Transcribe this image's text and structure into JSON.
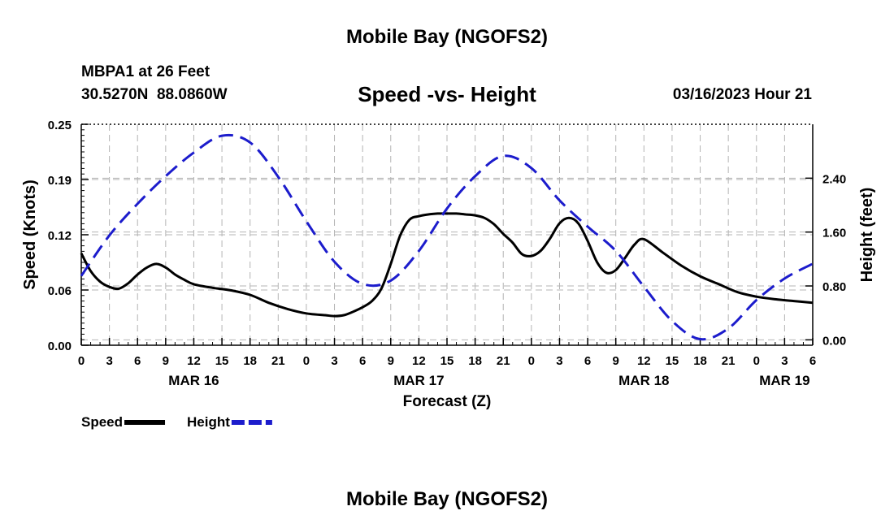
{
  "header": {
    "title": "Mobile Bay (NGOFS2)",
    "station": "MBPA1 at 26 Feet",
    "coords": "30.5270N  88.0860W",
    "subtitle": "Speed -vs- Height",
    "datetime": "03/16/2023 Hour 21"
  },
  "footer_title": "Mobile Bay (NGOFS2)",
  "colors": {
    "speed": "#000000",
    "height": "#1c1ccc",
    "grid": "#b4b4b4"
  },
  "chart_data": {
    "type": "line",
    "title": "Speed -vs- Height",
    "xlabel": "Forecast (Z)",
    "x_unit": "forecast hours from MAR 16 00Z",
    "xlim": [
      0,
      78
    ],
    "x_ticks": [
      0,
      3,
      6,
      9,
      12,
      15,
      18,
      21,
      24,
      27,
      30,
      33,
      36,
      39,
      42,
      45,
      48,
      51,
      54,
      57,
      60,
      63,
      66,
      69,
      72,
      75,
      78
    ],
    "x_tick_labels": [
      "0",
      "3",
      "6",
      "9",
      "12",
      "15",
      "18",
      "21",
      "0",
      "3",
      "6",
      "9",
      "12",
      "15",
      "18",
      "21",
      "0",
      "3",
      "6",
      "9",
      "12",
      "15",
      "18",
      "21",
      "0",
      "3",
      "6"
    ],
    "date_labels": [
      {
        "x": 12,
        "label": "MAR 16"
      },
      {
        "x": 36,
        "label": "MAR 17"
      },
      {
        "x": 60,
        "label": "MAR 18"
      },
      {
        "x": 75,
        "label": "MAR 19"
      }
    ],
    "y_left": {
      "label": "Speed (Knots)",
      "range": [
        0,
        0.25
      ],
      "ticks": [
        0,
        0.0625,
        0.125,
        0.1875,
        0.25
      ],
      "tick_labels": [
        "0.00",
        "0.06",
        "0.12",
        "0.19",
        "0.25"
      ]
    },
    "y_right": {
      "label": "Height (feet)",
      "range": [
        -0.08,
        3.2
      ],
      "ticks": [
        0,
        0.8,
        1.6,
        2.4
      ],
      "tick_labels": [
        "0.00",
        "0.80",
        "1.60",
        "2.40"
      ]
    },
    "grid": true,
    "legend_position": "bottom-left",
    "series": [
      {
        "name": "Speed",
        "axis": "left",
        "style": "solid",
        "x": [
          0,
          1,
          2,
          3,
          4,
          5,
          6,
          7,
          8,
          9,
          10,
          11,
          12,
          14,
          16,
          18,
          20,
          22,
          24,
          26,
          27,
          28,
          29,
          30,
          31,
          32,
          33,
          34,
          35,
          36,
          37,
          38,
          39,
          40,
          41,
          42,
          43,
          44,
          45,
          46,
          47,
          48,
          49,
          50,
          51,
          52,
          53,
          54,
          55,
          56,
          57,
          58,
          59,
          60,
          62,
          64,
          66,
          68,
          70,
          72,
          74,
          76,
          78
        ],
        "values": [
          0.104,
          0.084,
          0.072,
          0.066,
          0.064,
          0.07,
          0.08,
          0.088,
          0.092,
          0.088,
          0.08,
          0.074,
          0.069,
          0.065,
          0.062,
          0.057,
          0.048,
          0.041,
          0.036,
          0.034,
          0.033,
          0.034,
          0.038,
          0.043,
          0.05,
          0.064,
          0.092,
          0.124,
          0.142,
          0.146,
          0.148,
          0.149,
          0.149,
          0.149,
          0.148,
          0.147,
          0.144,
          0.137,
          0.126,
          0.116,
          0.103,
          0.101,
          0.107,
          0.121,
          0.138,
          0.144,
          0.138,
          0.118,
          0.094,
          0.082,
          0.085,
          0.099,
          0.114,
          0.12,
          0.105,
          0.09,
          0.078,
          0.069,
          0.06,
          0.055,
          0.052,
          0.05,
          0.048
        ]
      },
      {
        "name": "Height",
        "axis": "right",
        "style": "dashed",
        "x": [
          0,
          3,
          6,
          9,
          12,
          15,
          18,
          21,
          24,
          27,
          30,
          33,
          36,
          39,
          42,
          45,
          48,
          51,
          54,
          57,
          60,
          63,
          66,
          69,
          72,
          75,
          78
        ],
        "values": [
          0.95,
          1.55,
          2.02,
          2.43,
          2.78,
          3.03,
          2.93,
          2.42,
          1.76,
          1.16,
          0.83,
          0.88,
          1.32,
          1.95,
          2.43,
          2.73,
          2.55,
          2.07,
          1.68,
          1.32,
          0.79,
          0.28,
          0.01,
          0.17,
          0.59,
          0.91,
          1.13
        ]
      }
    ]
  },
  "legend": {
    "items": [
      {
        "label": "Speed",
        "series": "Speed"
      },
      {
        "label": "Height",
        "series": "Height"
      }
    ]
  }
}
